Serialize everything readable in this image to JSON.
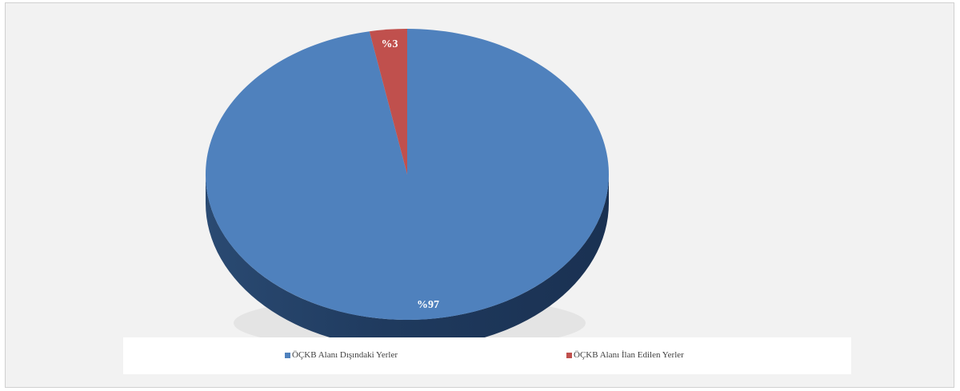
{
  "chart_data": {
    "type": "pie",
    "title": "",
    "slices": [
      {
        "label": "ÖÇKB Alanı Dışındaki Yerler",
        "value": 97,
        "data_label": "%97",
        "color": "#4f81bd",
        "side_color": "#2c4d75"
      },
      {
        "label": "ÖÇKB Alanı İlan Edilen Yerler",
        "value": 3,
        "data_label": "%3",
        "color": "#c0504d",
        "side_color": "#7f2d2b"
      }
    ],
    "legend_position": "bottom",
    "style": "3d"
  }
}
